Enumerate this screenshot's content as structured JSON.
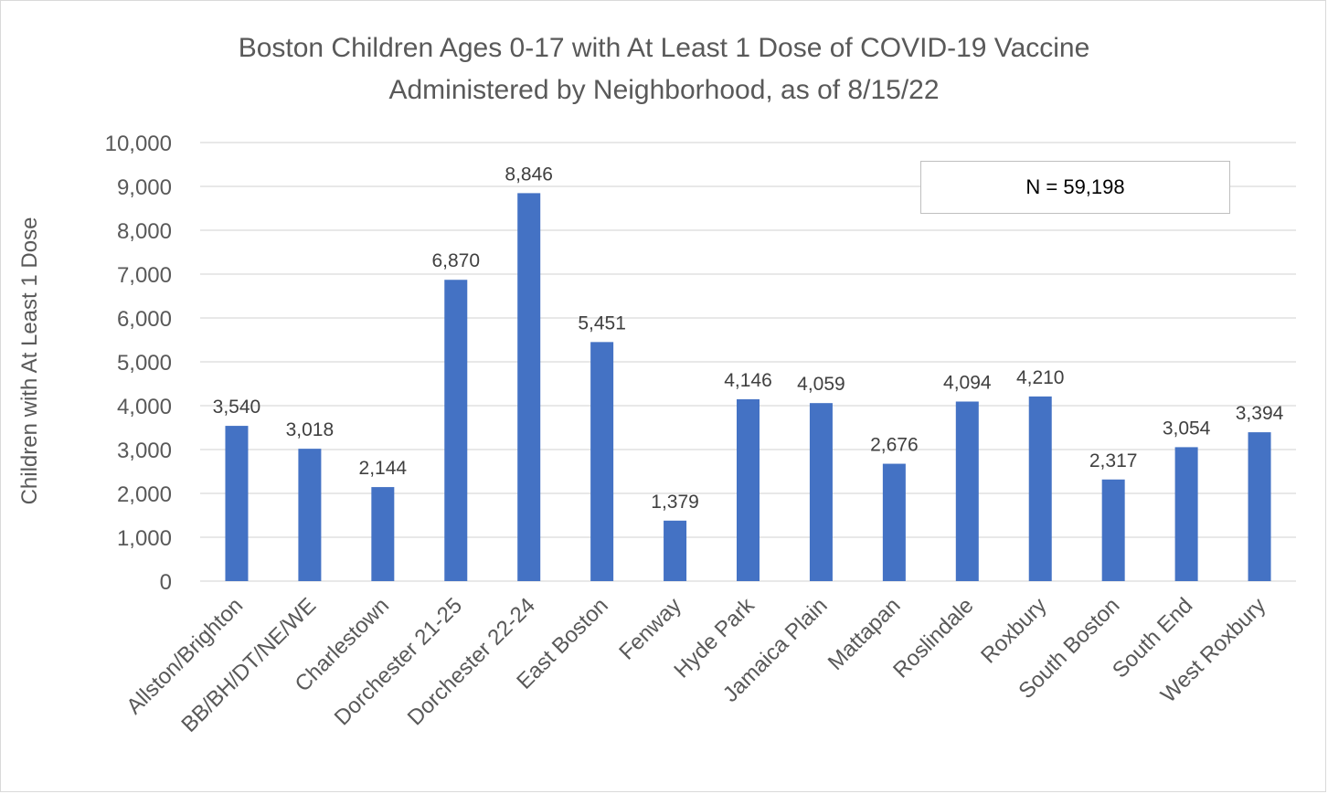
{
  "chart_data": {
    "type": "bar",
    "title_lines": [
      "Boston Children Ages 0-17 with At Least 1 Dose of COVID-19 Vaccine",
      "Administered by Neighborhood, as of 8/15/22"
    ],
    "xlabel": "",
    "ylabel": "Children with At Least 1 Dose",
    "ylim": [
      0,
      10000
    ],
    "y_ticks": [
      0,
      1000,
      2000,
      3000,
      4000,
      5000,
      6000,
      7000,
      8000,
      9000,
      10000
    ],
    "y_tick_labels": [
      "0",
      "1,000",
      "2,000",
      "3,000",
      "4,000",
      "5,000",
      "6,000",
      "7,000",
      "8,000",
      "9,000",
      "10,000"
    ],
    "categories": [
      "Allston/Brighton",
      "BB/BH/DT/NE/WE",
      "Charlestown",
      "Dorchester 21-25",
      "Dorchester 22-24",
      "East Boston",
      "Fenway",
      "Hyde Park",
      "Jamaica Plain",
      "Mattapan",
      "Roslindale",
      "Roxbury",
      "South Boston",
      "South End",
      "West Roxbury"
    ],
    "values": [
      3540,
      3018,
      2144,
      6870,
      8846,
      5451,
      1379,
      4146,
      4059,
      2676,
      4094,
      4210,
      2317,
      3054,
      3394
    ],
    "data_labels": [
      "3,540",
      "3,018",
      "2,144",
      "6,870",
      "8,846",
      "5,451",
      "1,379",
      "4,146",
      "4,059",
      "2,676",
      "4,094",
      "4,210",
      "2,317",
      "3,054",
      "3,394"
    ],
    "annotation": "N = 59,198",
    "grid": true,
    "legend": "none",
    "bar_color": "#4472c4",
    "grid_color": "#d9d9d9",
    "text_color": "#595959"
  }
}
